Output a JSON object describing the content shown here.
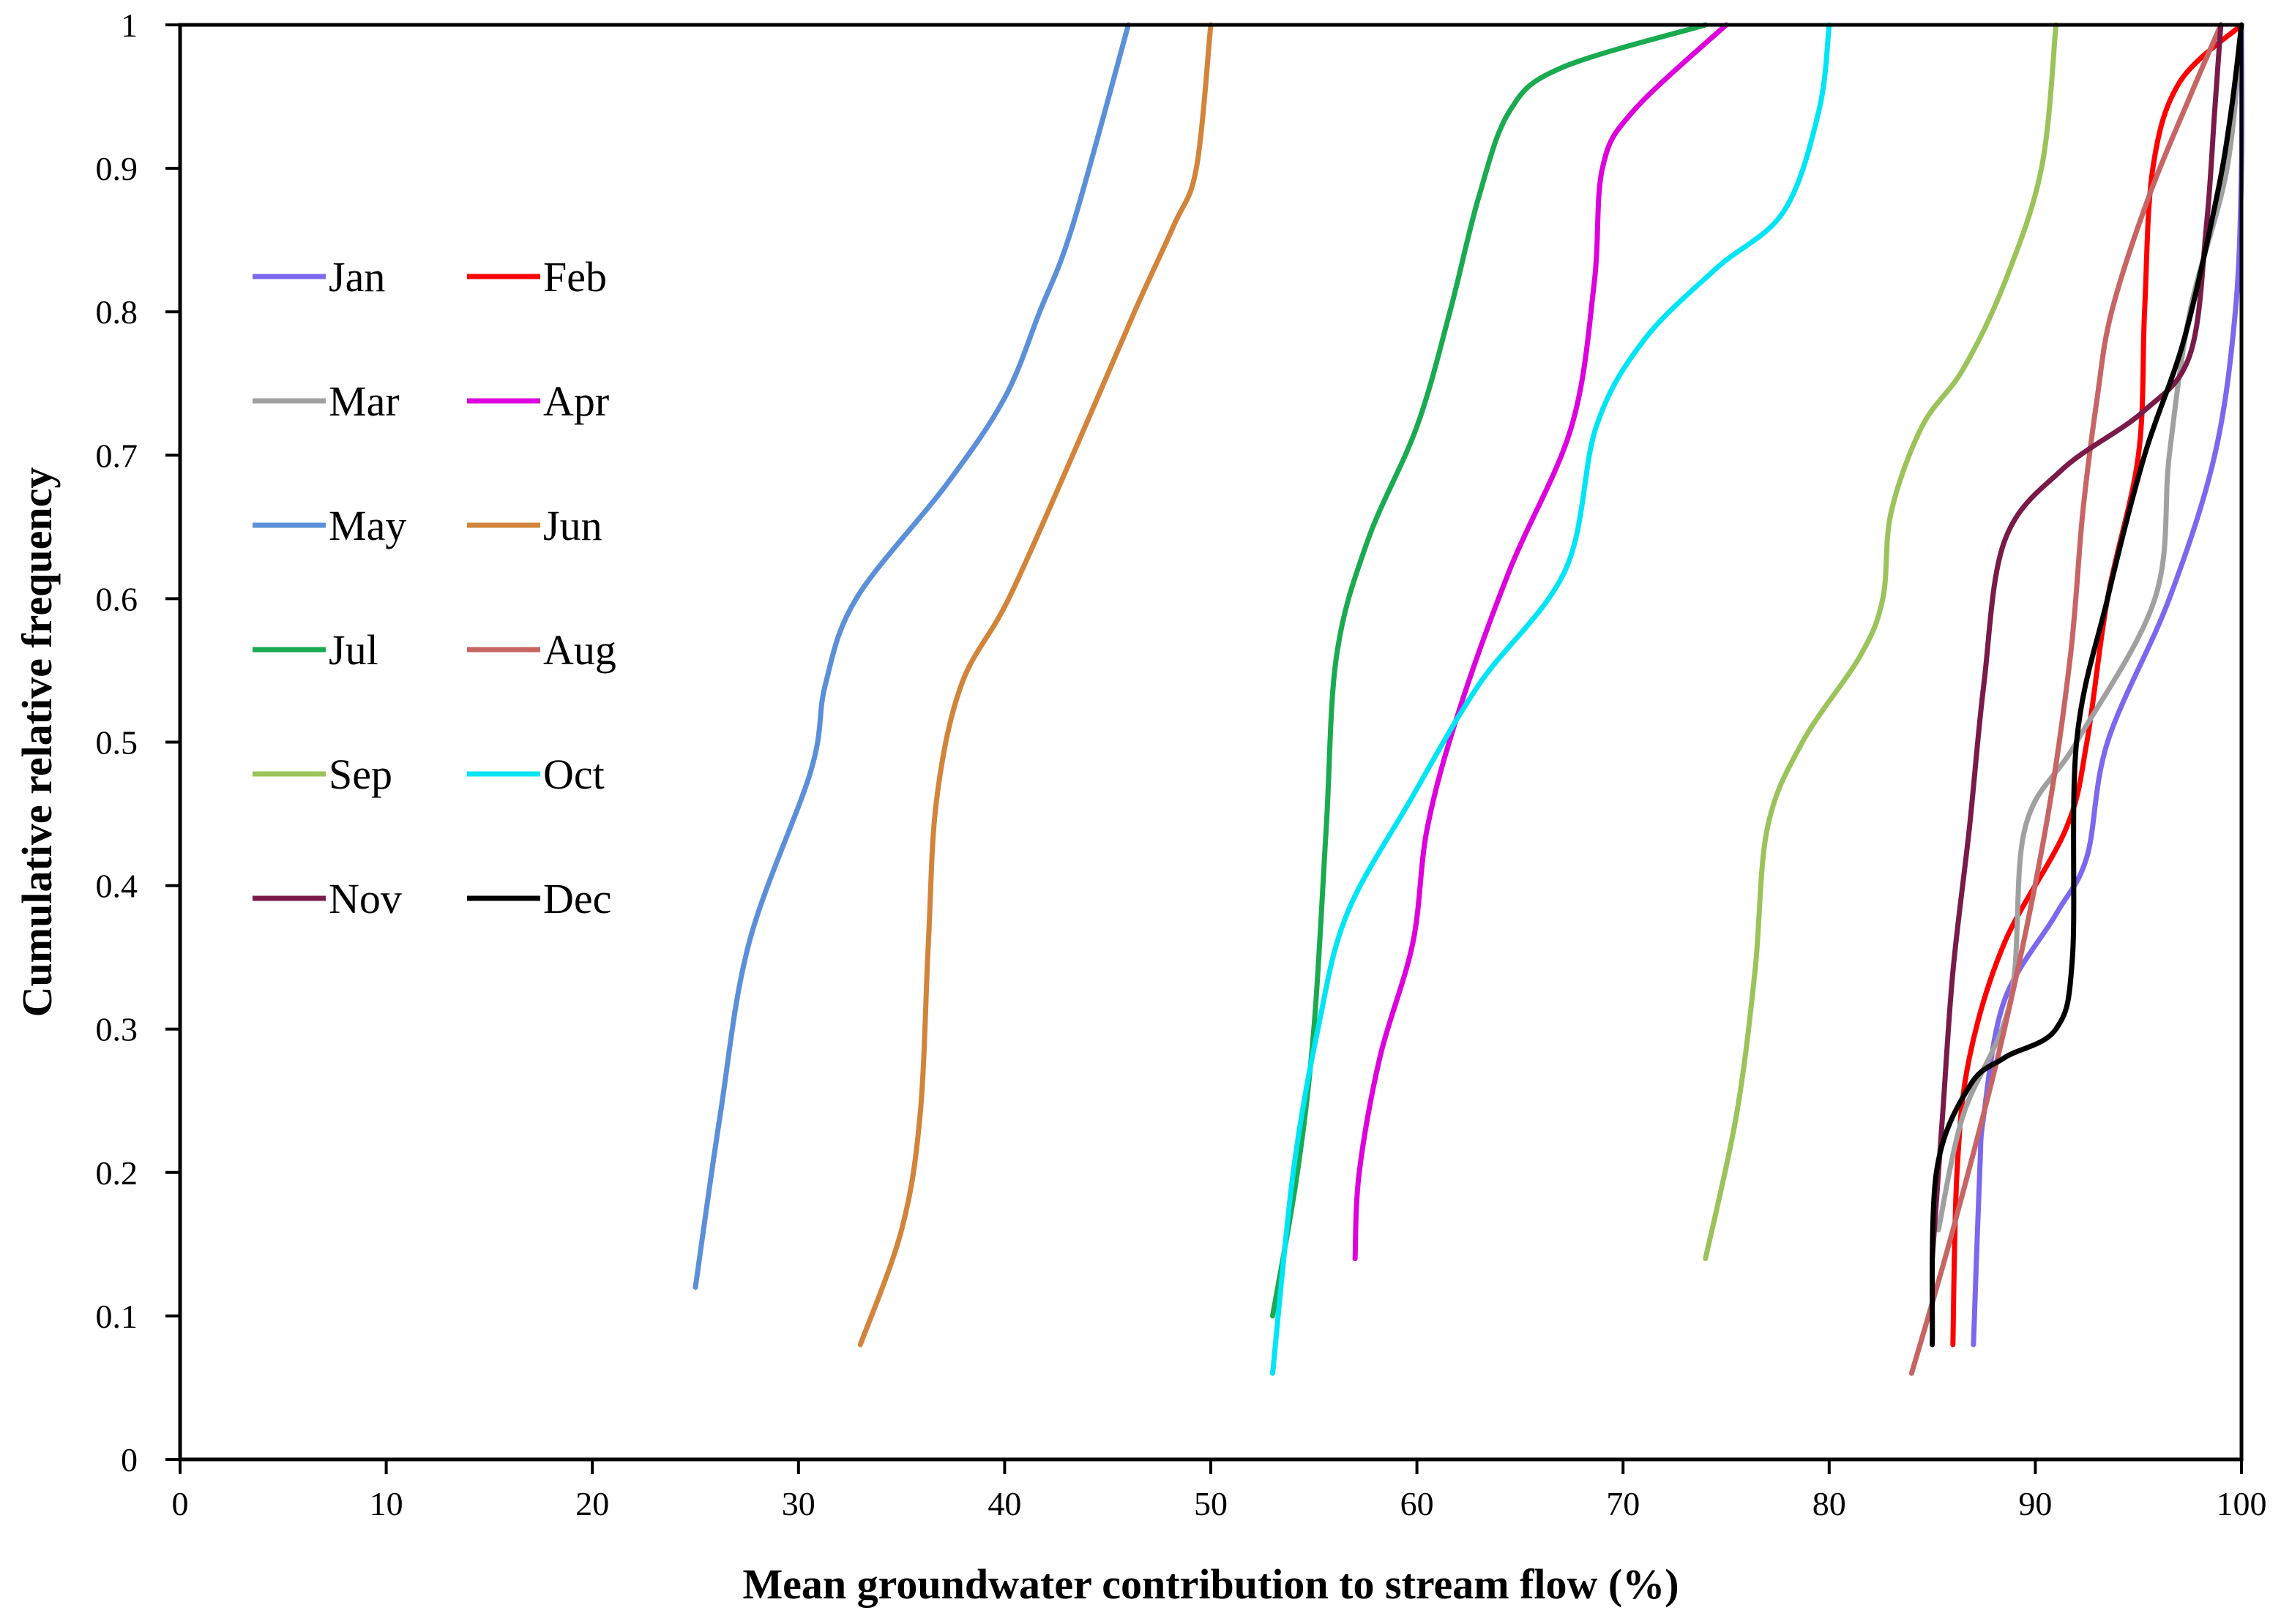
{
  "chart_data": {
    "type": "line",
    "xlabel": "Mean groundwater contribution to stream flow (%)",
    "ylabel": "Cumulative relative frequency",
    "xlim": [
      0,
      100
    ],
    "ylim": [
      0,
      1
    ],
    "x_ticks": [
      0,
      10,
      20,
      30,
      40,
      50,
      60,
      70,
      80,
      90,
      100
    ],
    "y_ticks": [
      0,
      0.1,
      0.2,
      0.3,
      0.4,
      0.5,
      0.6,
      0.7,
      0.8,
      0.9,
      1
    ],
    "x_tick_labels": [
      "0",
      "10",
      "20",
      "30",
      "40",
      "50",
      "60",
      "70",
      "80",
      "90",
      "100"
    ],
    "y_tick_labels": [
      "0",
      "0.1",
      "0.2",
      "0.3",
      "0.4",
      "0.5",
      "0.6",
      "0.7",
      "0.8",
      "0.9",
      "1"
    ],
    "grid": false,
    "legend_position": "left",
    "series": [
      {
        "name": "Jan",
        "color": "#7b68ee",
        "points": [
          [
            87,
            0.08
          ],
          [
            87.3,
            0.2
          ],
          [
            87.5,
            0.24
          ],
          [
            88.5,
            0.32
          ],
          [
            91,
            0.38
          ],
          [
            92.5,
            0.42
          ],
          [
            93.5,
            0.5
          ],
          [
            96.5,
            0.6
          ],
          [
            98.7,
            0.7
          ],
          [
            99.7,
            0.8
          ],
          [
            100,
            0.9
          ],
          [
            100,
            1.0
          ]
        ]
      },
      {
        "name": "Feb",
        "color": "#ff0000",
        "points": [
          [
            86,
            0.08
          ],
          [
            86.2,
            0.2
          ],
          [
            86.8,
            0.28
          ],
          [
            88.5,
            0.36
          ],
          [
            91.5,
            0.44
          ],
          [
            92.5,
            0.5
          ],
          [
            93.5,
            0.6
          ],
          [
            95,
            0.7
          ],
          [
            95.3,
            0.8
          ],
          [
            95.7,
            0.9
          ],
          [
            97,
            0.96
          ],
          [
            100,
            1.0
          ]
        ]
      },
      {
        "name": "Mar",
        "color": "#a0a0a0",
        "points": [
          [
            85.3,
            0.16
          ],
          [
            86.5,
            0.24
          ],
          [
            88.8,
            0.32
          ],
          [
            89.5,
            0.44
          ],
          [
            92,
            0.5
          ],
          [
            95.8,
            0.6
          ],
          [
            96.5,
            0.7
          ],
          [
            97.5,
            0.8
          ],
          [
            99.3,
            0.9
          ],
          [
            100,
            1.0
          ]
        ]
      },
      {
        "name": "Apr",
        "color": "#dd00dd",
        "points": [
          [
            57,
            0.14
          ],
          [
            57.2,
            0.2
          ],
          [
            58.2,
            0.28
          ],
          [
            59.8,
            0.36
          ],
          [
            60.5,
            0.44
          ],
          [
            62,
            0.52
          ],
          [
            64.5,
            0.62
          ],
          [
            67.5,
            0.72
          ],
          [
            68.6,
            0.82
          ],
          [
            69,
            0.9
          ],
          [
            70.5,
            0.94
          ],
          [
            75,
            1.0
          ]
        ]
      },
      {
        "name": "May",
        "color": "#5b8fd9",
        "points": [
          [
            25,
            0.12
          ],
          [
            26.2,
            0.24
          ],
          [
            27.6,
            0.36
          ],
          [
            30.6,
            0.48
          ],
          [
            31.3,
            0.54
          ],
          [
            32.8,
            0.6
          ],
          [
            37.2,
            0.68
          ],
          [
            40,
            0.74
          ],
          [
            41.7,
            0.8
          ],
          [
            43.3,
            0.86
          ],
          [
            46,
            1.0
          ]
        ]
      },
      {
        "name": "Jun",
        "color": "#d2843a",
        "points": [
          [
            33,
            0.08
          ],
          [
            35,
            0.16
          ],
          [
            35.9,
            0.24
          ],
          [
            36.3,
            0.36
          ],
          [
            36.7,
            0.46
          ],
          [
            37.9,
            0.54
          ],
          [
            40.2,
            0.6
          ],
          [
            43.3,
            0.7
          ],
          [
            46.3,
            0.8
          ],
          [
            48.2,
            0.86
          ],
          [
            49.3,
            0.9
          ],
          [
            50,
            1.0
          ]
        ]
      },
      {
        "name": "Jul",
        "color": "#1aaa50",
        "points": [
          [
            53,
            0.1
          ],
          [
            54.2,
            0.2
          ],
          [
            55,
            0.3
          ],
          [
            55.6,
            0.44
          ],
          [
            56.1,
            0.56
          ],
          [
            57.6,
            0.64
          ],
          [
            60,
            0.72
          ],
          [
            61.6,
            0.8
          ],
          [
            63,
            0.88
          ],
          [
            64.5,
            0.94
          ],
          [
            67,
            0.97
          ],
          [
            74,
            1.0
          ]
        ]
      },
      {
        "name": "Aug",
        "color": "#c86464",
        "points": [
          [
            84,
            0.06
          ],
          [
            86,
            0.16
          ],
          [
            88.5,
            0.3
          ],
          [
            90.5,
            0.44
          ],
          [
            91.7,
            0.56
          ],
          [
            92.3,
            0.66
          ],
          [
            93,
            0.74
          ],
          [
            93.7,
            0.8
          ],
          [
            95.5,
            0.88
          ],
          [
            97.5,
            0.95
          ],
          [
            99,
            1.0
          ]
        ]
      },
      {
        "name": "Sep",
        "color": "#9bc35a",
        "points": [
          [
            74,
            0.14
          ],
          [
            75.5,
            0.24
          ],
          [
            76.4,
            0.34
          ],
          [
            77,
            0.44
          ],
          [
            78.7,
            0.5
          ],
          [
            81.5,
            0.56
          ],
          [
            82.6,
            0.6
          ],
          [
            83,
            0.66
          ],
          [
            84.5,
            0.72
          ],
          [
            86.5,
            0.76
          ],
          [
            88.5,
            0.82
          ],
          [
            90.3,
            0.9
          ],
          [
            91,
            1.0
          ]
        ]
      },
      {
        "name": "Oct",
        "color": "#00e5f5",
        "points": [
          [
            53,
            0.06
          ],
          [
            54,
            0.2
          ],
          [
            55.2,
            0.3
          ],
          [
            56.6,
            0.38
          ],
          [
            59.7,
            0.46
          ],
          [
            63,
            0.54
          ],
          [
            67.2,
            0.62
          ],
          [
            68.7,
            0.72
          ],
          [
            71,
            0.78
          ],
          [
            74.5,
            0.83
          ],
          [
            77.8,
            0.87
          ],
          [
            79.5,
            0.94
          ],
          [
            80,
            1.0
          ]
        ]
      },
      {
        "name": "Nov",
        "color": "#7a1a48",
        "points": [
          [
            85,
            0.14
          ],
          [
            85.5,
            0.24
          ],
          [
            86,
            0.34
          ],
          [
            86.8,
            0.44
          ],
          [
            87.5,
            0.54
          ],
          [
            88.5,
            0.64
          ],
          [
            91.3,
            0.69
          ],
          [
            95.2,
            0.73
          ],
          [
            97.5,
            0.77
          ],
          [
            98.3,
            0.86
          ],
          [
            98.7,
            0.94
          ],
          [
            99,
            1.0
          ]
        ]
      },
      {
        "name": "Dec",
        "color": "#000000",
        "points": [
          [
            85,
            0.08
          ],
          [
            85.2,
            0.2
          ],
          [
            86.8,
            0.26
          ],
          [
            88.5,
            0.28
          ],
          [
            91,
            0.3
          ],
          [
            91.8,
            0.35
          ],
          [
            92,
            0.5
          ],
          [
            93.5,
            0.6
          ],
          [
            95.3,
            0.7
          ],
          [
            97.2,
            0.78
          ],
          [
            98.8,
            0.88
          ],
          [
            99.5,
            0.94
          ],
          [
            100,
            1.0
          ]
        ]
      }
    ]
  }
}
